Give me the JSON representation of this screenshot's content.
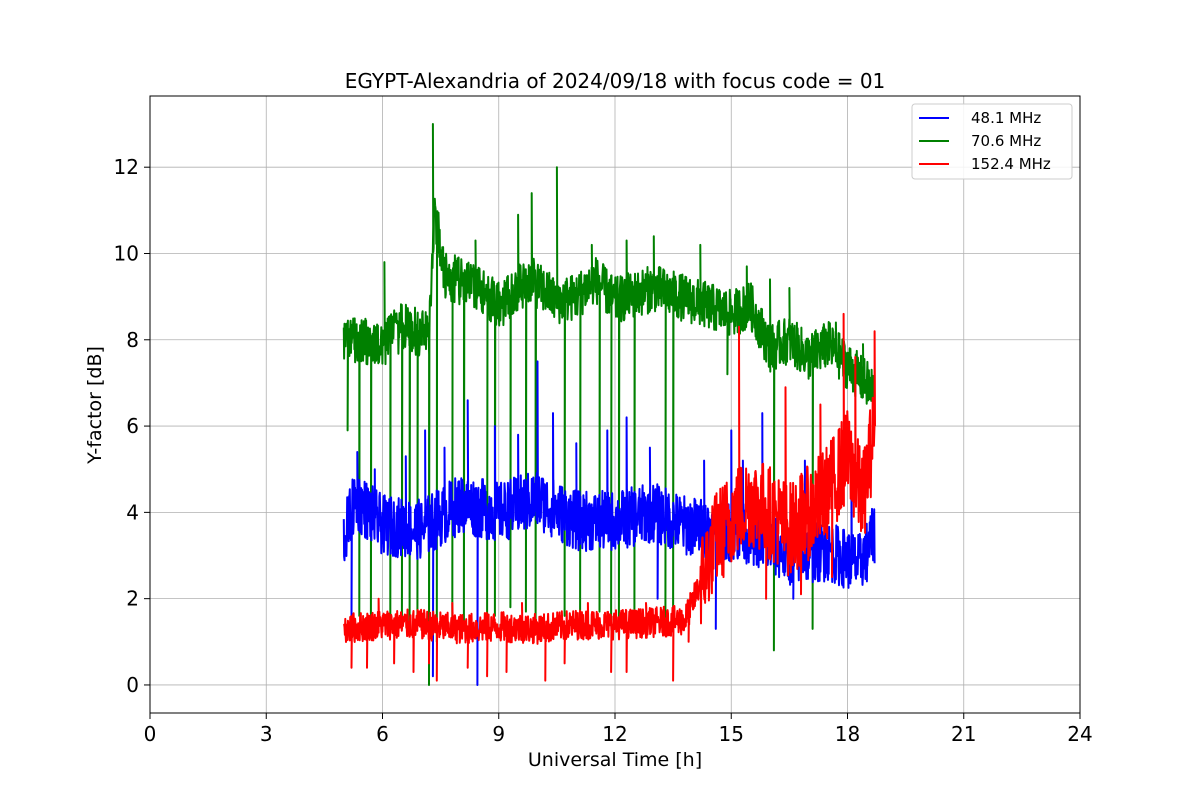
{
  "chart_data": {
    "type": "line",
    "title": "EGYPT-Alexandria of 2024/09/18 with focus code = 01",
    "xlabel": "Universal Time [h]",
    "ylabel": "Y-factor [dB]",
    "xlim": [
      0,
      24
    ],
    "ylim": [
      -0.65,
      13.65
    ],
    "xticks": [
      0,
      3,
      6,
      9,
      12,
      15,
      18,
      21,
      24
    ],
    "yticks": [
      0,
      2,
      4,
      6,
      8,
      10,
      12
    ],
    "grid": true,
    "legend_position": "top-right",
    "series": [
      {
        "name": "48.1 MHz",
        "color": "#0000ff",
        "profile": [
          [
            5.0,
            3.4
          ],
          [
            5.3,
            4.3
          ],
          [
            6.0,
            3.7
          ],
          [
            7.0,
            3.6
          ],
          [
            8.0,
            4.2
          ],
          [
            9.0,
            4.0
          ],
          [
            10.0,
            4.3
          ],
          [
            11.0,
            3.8
          ],
          [
            12.0,
            3.8
          ],
          [
            13.0,
            4.0
          ],
          [
            13.8,
            3.7
          ],
          [
            14.5,
            3.6
          ],
          [
            15.5,
            3.5
          ],
          [
            16.5,
            3.0
          ],
          [
            17.5,
            3.1
          ],
          [
            18.3,
            2.8
          ],
          [
            18.7,
            3.5
          ]
        ],
        "spikes": [
          [
            5.2,
            1.6
          ],
          [
            5.35,
            5.4
          ],
          [
            5.8,
            5.0
          ],
          [
            6.6,
            5.3
          ],
          [
            7.1,
            5.9
          ],
          [
            7.3,
            0.2
          ],
          [
            7.6,
            5.5
          ],
          [
            8.2,
            6.6
          ],
          [
            8.45,
            0.0
          ],
          [
            8.9,
            6.0
          ],
          [
            9.5,
            5.8
          ],
          [
            10.0,
            7.5
          ],
          [
            10.4,
            6.3
          ],
          [
            11.0,
            5.6
          ],
          [
            11.8,
            5.9
          ],
          [
            12.3,
            6.2
          ],
          [
            12.9,
            5.5
          ],
          [
            13.1,
            2.0
          ],
          [
            14.3,
            5.2
          ],
          [
            14.6,
            1.3
          ],
          [
            15.0,
            5.9
          ],
          [
            15.3,
            5.2
          ],
          [
            15.8,
            6.3
          ],
          [
            16.6,
            2.0
          ],
          [
            16.9,
            5.2
          ],
          [
            17.4,
            4.9
          ],
          [
            18.1,
            5.3
          ],
          [
            18.5,
            2.4
          ]
        ]
      },
      {
        "name": "70.6 MHz",
        "color": "#008000",
        "profile": [
          [
            5.0,
            8.0
          ],
          [
            6.0,
            7.9
          ],
          [
            6.5,
            8.3
          ],
          [
            7.2,
            8.1
          ],
          [
            7.35,
            11.0
          ],
          [
            7.6,
            9.5
          ],
          [
            8.5,
            9.2
          ],
          [
            9.0,
            8.8
          ],
          [
            9.8,
            9.4
          ],
          [
            10.5,
            8.9
          ],
          [
            11.0,
            9.0
          ],
          [
            11.5,
            9.4
          ],
          [
            12.0,
            8.9
          ],
          [
            13.0,
            9.2
          ],
          [
            14.0,
            8.9
          ],
          [
            15.0,
            8.6
          ],
          [
            15.5,
            8.8
          ],
          [
            16.0,
            7.8
          ],
          [
            16.5,
            8.0
          ],
          [
            17.0,
            7.6
          ],
          [
            17.5,
            7.9
          ],
          [
            18.0,
            7.4
          ],
          [
            18.7,
            6.8
          ]
        ],
        "spikes": [
          [
            5.1,
            5.9
          ],
          [
            5.4,
            1.6
          ],
          [
            5.5,
            8.3
          ],
          [
            5.7,
            1.5
          ],
          [
            6.05,
            9.8
          ],
          [
            6.2,
            1.4
          ],
          [
            6.5,
            1.3
          ],
          [
            6.7,
            1.4
          ],
          [
            6.9,
            1.4
          ],
          [
            7.2,
            0.0
          ],
          [
            7.3,
            13.0
          ],
          [
            7.4,
            1.0
          ],
          [
            7.6,
            9.9
          ],
          [
            7.8,
            1.4
          ],
          [
            8.1,
            1.5
          ],
          [
            8.4,
            10.3
          ],
          [
            8.7,
            1.5
          ],
          [
            8.9,
            1.6
          ],
          [
            9.3,
            1.8
          ],
          [
            9.5,
            10.9
          ],
          [
            9.7,
            1.7
          ],
          [
            9.85,
            11.4
          ],
          [
            9.95,
            1.5
          ],
          [
            10.5,
            12.0
          ],
          [
            10.7,
            1.6
          ],
          [
            11.1,
            1.6
          ],
          [
            11.4,
            10.2
          ],
          [
            11.6,
            1.7
          ],
          [
            11.9,
            1.5
          ],
          [
            12.1,
            1.2
          ],
          [
            12.3,
            10.3
          ],
          [
            12.5,
            1.5
          ],
          [
            13.0,
            10.4
          ],
          [
            13.3,
            1.4
          ],
          [
            13.5,
            1.4
          ],
          [
            14.2,
            10.2
          ],
          [
            14.9,
            7.2
          ],
          [
            15.4,
            9.7
          ],
          [
            16.0,
            9.4
          ],
          [
            16.1,
            0.8
          ],
          [
            16.5,
            9.2
          ],
          [
            17.1,
            1.3
          ],
          [
            17.7,
            8.4
          ],
          [
            18.4,
            7.9
          ]
        ]
      },
      {
        "name": "152.4 MHz",
        "color": "#ff0000",
        "profile": [
          [
            5.0,
            1.3
          ],
          [
            6.0,
            1.4
          ],
          [
            7.0,
            1.4
          ],
          [
            8.0,
            1.3
          ],
          [
            9.0,
            1.35
          ],
          [
            10.0,
            1.3
          ],
          [
            11.0,
            1.4
          ],
          [
            12.0,
            1.4
          ],
          [
            13.0,
            1.45
          ],
          [
            13.8,
            1.5
          ],
          [
            14.0,
            1.9
          ],
          [
            14.3,
            2.6
          ],
          [
            14.6,
            3.4
          ],
          [
            15.0,
            3.9
          ],
          [
            15.5,
            4.3
          ],
          [
            16.0,
            4.0
          ],
          [
            16.5,
            3.6
          ],
          [
            17.0,
            4.0
          ],
          [
            17.5,
            4.5
          ],
          [
            18.0,
            5.3
          ],
          [
            18.4,
            4.3
          ],
          [
            18.7,
            6.0
          ]
        ],
        "spikes": [
          [
            5.2,
            0.4
          ],
          [
            5.6,
            0.4
          ],
          [
            5.9,
            2.0
          ],
          [
            6.3,
            0.5
          ],
          [
            6.8,
            0.3
          ],
          [
            7.2,
            0.5
          ],
          [
            7.4,
            0.1
          ],
          [
            7.8,
            1.9
          ],
          [
            8.2,
            0.4
          ],
          [
            8.7,
            0.2
          ],
          [
            9.2,
            0.3
          ],
          [
            9.6,
            1.9
          ],
          [
            10.2,
            0.1
          ],
          [
            10.7,
            0.5
          ],
          [
            11.3,
            1.9
          ],
          [
            11.9,
            0.3
          ],
          [
            12.3,
            0.3
          ],
          [
            12.8,
            1.9
          ],
          [
            13.5,
            0.1
          ],
          [
            13.9,
            1.0
          ],
          [
            14.8,
            2.5
          ],
          [
            15.2,
            8.3
          ],
          [
            15.9,
            2.0
          ],
          [
            16.4,
            6.9
          ],
          [
            16.8,
            2.1
          ],
          [
            17.3,
            6.5
          ],
          [
            17.6,
            2.5
          ],
          [
            17.9,
            8.6
          ],
          [
            18.2,
            7.6
          ],
          [
            18.7,
            8.2
          ]
        ]
      }
    ]
  }
}
